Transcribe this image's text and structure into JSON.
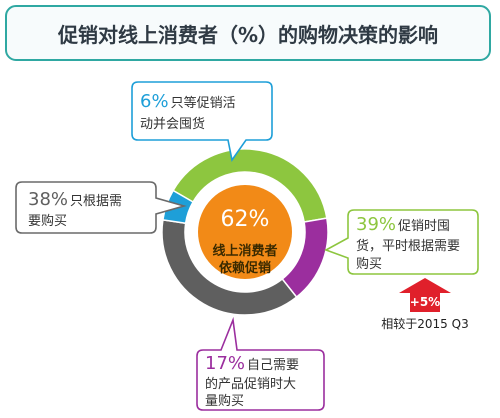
{
  "title": "促销对线上消费者（%）的购物决策的影响",
  "colors": {
    "green": "#8DC63F",
    "purple": "#9B2E9E",
    "gray": "#5F5F5F",
    "blue": "#1E9FD8",
    "center": "#F28A17",
    "frame_border": "#2FA8A2",
    "arrow": "#E0202B"
  },
  "center": {
    "percent": "62%",
    "line1": "线上消费者",
    "line2": "依赖促销"
  },
  "callouts": {
    "blue": {
      "pct": "6%",
      "line1": "只等促销活",
      "line2": "动并会囤货"
    },
    "gray": {
      "pct": "38%",
      "line1": "只根据需",
      "line2": "要购买"
    },
    "green": {
      "pct": "39%",
      "line1": "促销时囤",
      "line2": "货，平时根据需要",
      "line3": "购买"
    },
    "purple": {
      "pct": "17%",
      "line1": "自己需要",
      "line2": "的产品促销时大",
      "line3": "量购买"
    }
  },
  "change": {
    "value": "+5%",
    "caption": "相较于2015 Q3"
  },
  "chart_data": {
    "type": "pie",
    "title": "促销对线上消费者（%）的购物决策的影响",
    "slices": [
      {
        "label": "促销时囤货，平时根据需要购买",
        "value": 39,
        "color": "#8DC63F"
      },
      {
        "label": "自己需要的产品促销时大量购买",
        "value": 17,
        "color": "#9B2E9E"
      },
      {
        "label": "只根据需要购买",
        "value": 38,
        "color": "#5F5F5F"
      },
      {
        "label": "只等促销活动并会囤货",
        "value": 6,
        "color": "#1E9FD8"
      }
    ],
    "center_label": "62% 线上消费者依赖促销"
  }
}
